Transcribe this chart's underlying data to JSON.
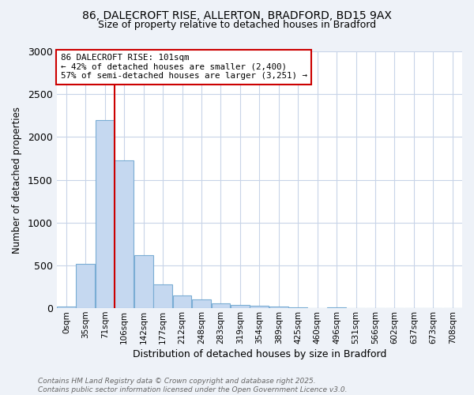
{
  "title_line1": "86, DALECROFT RISE, ALLERTON, BRADFORD, BD15 9AX",
  "title_line2": "Size of property relative to detached houses in Bradford",
  "xlabel": "Distribution of detached houses by size in Bradford",
  "ylabel": "Number of detached properties",
  "bar_labels": [
    "0sqm",
    "35sqm",
    "71sqm",
    "106sqm",
    "142sqm",
    "177sqm",
    "212sqm",
    "248sqm",
    "283sqm",
    "319sqm",
    "354sqm",
    "389sqm",
    "425sqm",
    "460sqm",
    "496sqm",
    "531sqm",
    "566sqm",
    "602sqm",
    "637sqm",
    "673sqm",
    "708sqm"
  ],
  "bar_values": [
    20,
    520,
    2200,
    1730,
    620,
    280,
    150,
    100,
    55,
    35,
    30,
    20,
    10,
    5,
    15,
    3,
    0,
    3,
    0,
    0,
    0
  ],
  "bar_color": "#c5d8f0",
  "bar_edgecolor": "#7aadd4",
  "vline_color": "#cc0000",
  "annotation_text": "86 DALECROFT RISE: 101sqm\n← 42% of detached houses are smaller (2,400)\n57% of semi-detached houses are larger (3,251) →",
  "annotation_box_edgecolor": "#cc0000",
  "annotation_box_facecolor": "#ffffff",
  "ylim": [
    0,
    3000
  ],
  "yticks": [
    0,
    500,
    1000,
    1500,
    2000,
    2500,
    3000
  ],
  "footer_text": "Contains HM Land Registry data © Crown copyright and database right 2025.\nContains public sector information licensed under the Open Government Licence v3.0.",
  "background_color": "#eef2f8",
  "plot_background_color": "#ffffff",
  "grid_color": "#c8d4e8"
}
